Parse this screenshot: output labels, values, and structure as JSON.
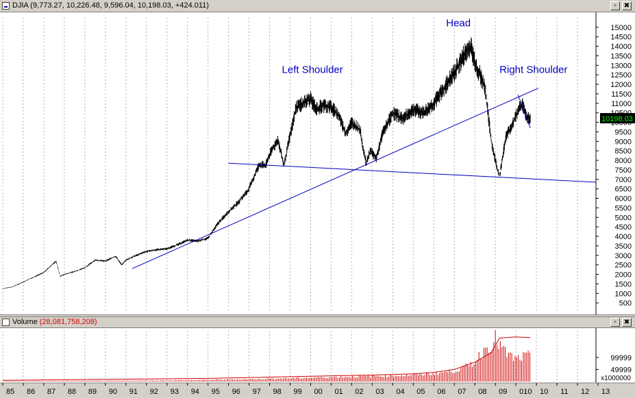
{
  "main_window": {
    "title": "DJIA (9,773.27, 10,226.48, 9,596.04, 10,198.03, +424.011)",
    "buttons": [
      "▫",
      "✖"
    ]
  },
  "volume_window": {
    "title_prefix": "Volume ",
    "title_value": "(28,081,758,208)",
    "buttons": [
      "▫",
      "✖"
    ]
  },
  "chart_data": [
    {
      "type": "line",
      "title": "DJIA (9,773.27, 10,226.48, 9,596.04, 10,198.03, +424.011)",
      "series_style": "bar",
      "x_ticks": [
        "85",
        "86",
        "87",
        "88",
        "89",
        "90",
        "91",
        "92",
        "93",
        "94",
        "95",
        "96",
        "97",
        "98",
        "99",
        "00",
        "01",
        "02",
        "03",
        "04",
        "05",
        "06",
        "07",
        "08",
        "09",
        "010",
        "10",
        "11",
        "12",
        "13"
      ],
      "y_ticks": [
        500,
        1000,
        1500,
        2000,
        2500,
        3000,
        3500,
        4000,
        4500,
        5000,
        5500,
        6000,
        6500,
        7000,
        7500,
        8000,
        8500,
        9000,
        9500,
        10000,
        10500,
        11000,
        11500,
        12000,
        12500,
        13000,
        13500,
        14000,
        14500,
        15000
      ],
      "ylim": [
        0,
        15500
      ],
      "x_range": [
        1985,
        2013.9
      ],
      "last_value_label": "10198.03",
      "last_value": 10198.03,
      "colors": {
        "price": "#000000",
        "lines": "#0000c0",
        "label": "#0000c0",
        "badge_bg": "#000000",
        "badge_fg": "#00ff00"
      },
      "series": [
        {
          "x": [
            1985.0,
            1985.5,
            1986.0,
            1986.5,
            1987.0,
            1987.6,
            1987.8,
            1988.0,
            1988.5,
            1989.0,
            1989.5,
            1990.0,
            1990.5,
            1990.8,
            1991.0,
            1991.5,
            1992.0,
            1992.5,
            1993.0,
            1993.5,
            1994.0,
            1994.5,
            1995.0,
            1995.5,
            1996.0,
            1996.5,
            1997.0,
            1997.5,
            1997.8,
            1998.0,
            1998.4,
            1998.7,
            1998.9,
            1999.0,
            1999.3,
            1999.6,
            2000.0,
            2000.3,
            2000.6,
            2001.0,
            2001.4,
            2001.7,
            2002.0,
            2002.4,
            2002.7,
            2002.9,
            2003.2,
            2003.5,
            2004.0,
            2004.5,
            2005.0,
            2005.5,
            2006.0,
            2006.5,
            2007.0,
            2007.5,
            2007.8,
            2008.0,
            2008.5,
            2008.8,
            2009.0,
            2009.2,
            2009.5,
            2010.0,
            2010.3,
            2010.5,
            2010.7
          ],
          "values": [
            1250,
            1350,
            1600,
            1850,
            2100,
            2700,
            1900,
            2000,
            2150,
            2350,
            2750,
            2700,
            2950,
            2500,
            2750,
            3000,
            3200,
            3300,
            3350,
            3550,
            3800,
            3750,
            3900,
            4700,
            5300,
            5800,
            6500,
            7800,
            7700,
            8300,
            9100,
            7700,
            8800,
            9300,
            10800,
            11000,
            11200,
            10700,
            10900,
            10800,
            10300,
            9400,
            10000,
            9600,
            7800,
            8500,
            8100,
            9400,
            10500,
            10200,
            10700,
            10500,
            11000,
            11800,
            12600,
            13600,
            14000,
            13200,
            11800,
            9000,
            8000,
            7100,
            9200,
            10300,
            11000,
            10300,
            10198
          ]
        }
      ],
      "annotations": [
        {
          "text": "Left Shoulder",
          "x": 1998.6,
          "y": 12600
        },
        {
          "text": "Head",
          "x": 2006.6,
          "y": 15050
        },
        {
          "text": "Right Shoulder",
          "x": 2009.2,
          "y": 12600
        }
      ],
      "trendlines": [
        {
          "x1": 1991.3,
          "y1": 2300,
          "x2": 2011.1,
          "y2": 11800
        },
        {
          "x1": 1996.0,
          "y1": 7850,
          "x2": 2013.9,
          "y2": 6850
        },
        {
          "x1": 2010.1,
          "y1": 11450,
          "x2": 2010.7,
          "y2": 9700
        }
      ]
    },
    {
      "type": "area",
      "title": "Volume (28,081,758,208)",
      "y_ticks": [
        49999,
        99999
      ],
      "y_ticks_label": [
        "49999",
        "99999"
      ],
      "ylim": [
        0,
        210000
      ],
      "scale_label": "x1000000",
      "x_range": [
        1985,
        2013.9
      ],
      "colors": {
        "bars": "#d00000",
        "avg_line": "#d00000"
      },
      "series": [
        {
          "x": [
            1985,
            1988,
            1991,
            1994,
            1997,
            1999,
            2001,
            2003,
            2005,
            2006,
            2007,
            2007.5,
            2008,
            2008.5,
            2009,
            2009.5,
            2010,
            2010.4,
            2010.7
          ],
          "values": [
            2000,
            3000,
            4000,
            6000,
            10000,
            14000,
            19000,
            23000,
            28000,
            34000,
            45000,
            60000,
            85000,
            140000,
            180000,
            120000,
            95000,
            105000,
            110000
          ]
        },
        {
          "x": [
            1985,
            1990,
            1995,
            2000,
            2003,
            2005,
            2006,
            2007,
            2008,
            2008.8,
            2009.2,
            2010,
            2010.7
          ],
          "values": [
            5000,
            9000,
            13000,
            22000,
            27000,
            32000,
            38000,
            50000,
            80000,
            120000,
            180000,
            185000,
            182000
          ]
        }
      ]
    }
  ]
}
